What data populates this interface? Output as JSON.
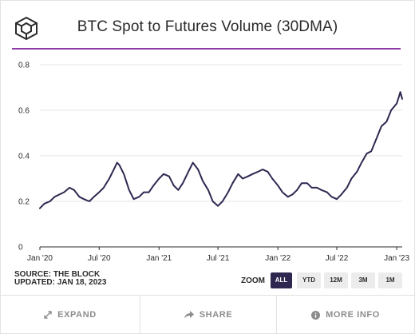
{
  "header": {
    "title": "BTC Spot to Futures Volume (30DMA)",
    "logo_icon": "the-block-cube-icon",
    "accent_color": "#8f3ba6"
  },
  "source": {
    "line1": "SOURCE: THE BLOCK",
    "line2": "UPDATED: JAN 18, 2023"
  },
  "zoom": {
    "label": "ZOOM",
    "options": [
      "ALL",
      "YTD",
      "12M",
      "3M",
      "1M"
    ],
    "selected": "ALL"
  },
  "footer": {
    "expand": "EXPAND",
    "share": "SHARE",
    "more_info": "MORE INFO",
    "expand_icon": "expand-arrows-icon",
    "share_icon": "share-arrow-icon",
    "more_info_icon": "info-circle-icon"
  },
  "chart_data": {
    "type": "line",
    "title": "BTC Spot to Futures Volume (30DMA)",
    "x_ticks": [
      "Jan '20",
      "Jul '20",
      "Jan '21",
      "Jul '21",
      "Jan '22",
      "Jul '22",
      "Jan '23"
    ],
    "y_ticks": [
      "0",
      "0.2",
      "0.4",
      "0.6",
      "0.8"
    ],
    "ylim": [
      0,
      0.8
    ],
    "xlim": [
      "2020-01-01",
      "2023-01-18"
    ],
    "grid": true,
    "line_color": "#2e2851",
    "series": [
      {
        "x": [
          "2020-01-01",
          "2020-01-15",
          "2020-02-01",
          "2020-02-15",
          "2020-03-01",
          "2020-03-15",
          "2020-04-01",
          "2020-04-15",
          "2020-05-01",
          "2020-05-15",
          "2020-06-01",
          "2020-06-15",
          "2020-07-01",
          "2020-07-15",
          "2020-08-01",
          "2020-08-15",
          "2020-08-25",
          "2020-09-01",
          "2020-09-15",
          "2020-10-01",
          "2020-10-15",
          "2020-11-01",
          "2020-11-15",
          "2020-12-01",
          "2020-12-15",
          "2021-01-01",
          "2021-01-15",
          "2021-02-01",
          "2021-02-15",
          "2021-03-01",
          "2021-03-15",
          "2021-04-01",
          "2021-04-15",
          "2021-05-01",
          "2021-05-15",
          "2021-06-01",
          "2021-06-15",
          "2021-07-01",
          "2021-07-15",
          "2021-08-01",
          "2021-08-15",
          "2021-09-01",
          "2021-09-15",
          "2021-10-01",
          "2021-10-15",
          "2021-11-01",
          "2021-11-15",
          "2021-12-01",
          "2021-12-15",
          "2022-01-01",
          "2022-01-15",
          "2022-02-01",
          "2022-02-15",
          "2022-03-01",
          "2022-03-15",
          "2022-04-01",
          "2022-04-15",
          "2022-05-01",
          "2022-05-15",
          "2022-06-01",
          "2022-06-15",
          "2022-07-01",
          "2022-07-15",
          "2022-08-01",
          "2022-08-15",
          "2022-09-01",
          "2022-09-15",
          "2022-10-01",
          "2022-10-15",
          "2022-11-01",
          "2022-11-15",
          "2022-12-01",
          "2022-12-15",
          "2023-01-01",
          "2023-01-08",
          "2023-01-12",
          "2023-01-18"
        ],
        "y": [
          0.17,
          0.19,
          0.2,
          0.22,
          0.23,
          0.24,
          0.26,
          0.25,
          0.22,
          0.21,
          0.2,
          0.22,
          0.24,
          0.26,
          0.3,
          0.34,
          0.37,
          0.36,
          0.32,
          0.25,
          0.21,
          0.22,
          0.24,
          0.24,
          0.27,
          0.3,
          0.32,
          0.31,
          0.27,
          0.25,
          0.28,
          0.33,
          0.37,
          0.34,
          0.29,
          0.25,
          0.2,
          0.18,
          0.2,
          0.24,
          0.28,
          0.32,
          0.3,
          0.31,
          0.32,
          0.33,
          0.34,
          0.33,
          0.3,
          0.27,
          0.24,
          0.22,
          0.23,
          0.25,
          0.28,
          0.28,
          0.26,
          0.26,
          0.25,
          0.24,
          0.22,
          0.21,
          0.23,
          0.26,
          0.3,
          0.33,
          0.37,
          0.41,
          0.42,
          0.48,
          0.53,
          0.55,
          0.6,
          0.63,
          0.66,
          0.68,
          0.65
        ]
      }
    ]
  }
}
